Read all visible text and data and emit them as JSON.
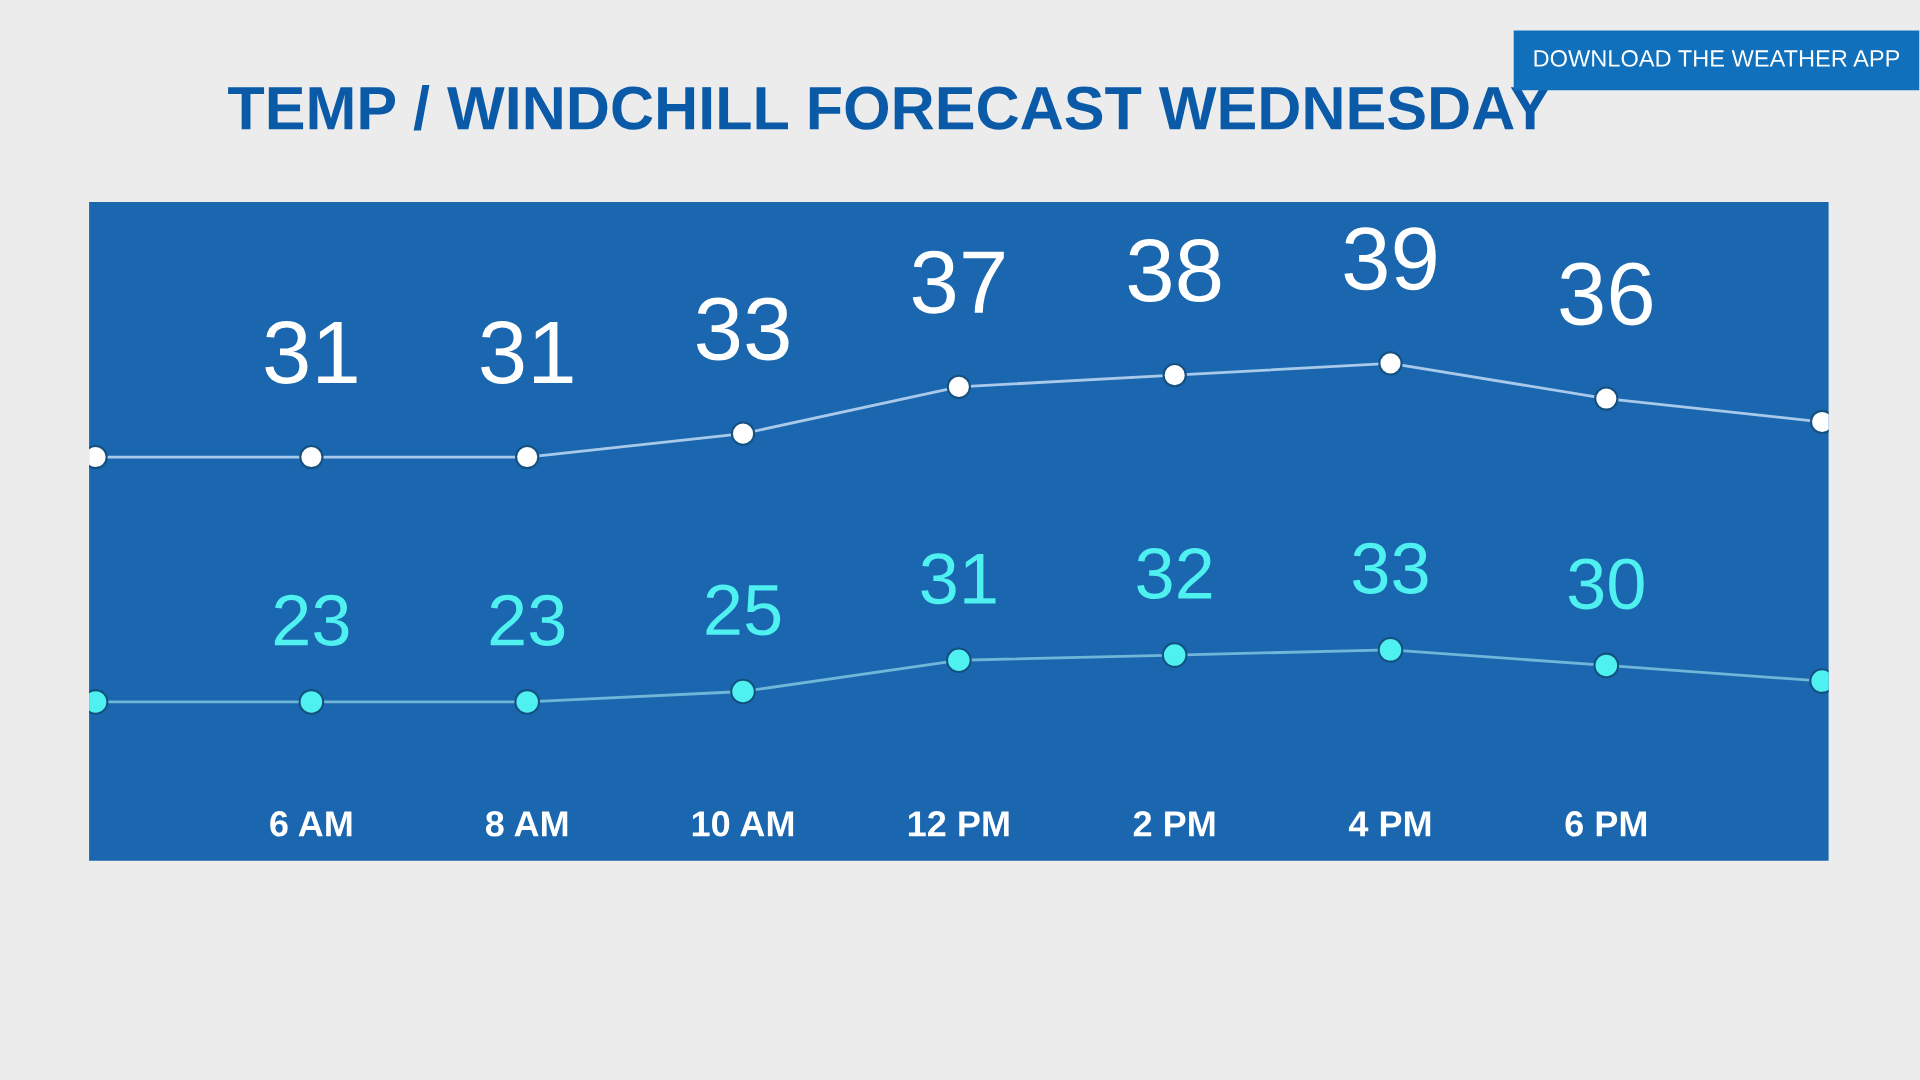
{
  "chart_data": {
    "type": "line",
    "title": "TEMP / WINDCHILL FORECAST WEDNESDAY",
    "categories": [
      null,
      "6 AM",
      "8 AM",
      "10 AM",
      "12 PM",
      "2 PM",
      "4 PM",
      "6 PM",
      null
    ],
    "series": [
      {
        "color": "#ffffff",
        "values": [
          31,
          31,
          31,
          33,
          37,
          38,
          39,
          36,
          34
        ],
        "value_labels": [
          null,
          "31",
          "31",
          "33",
          "37",
          "38",
          "39",
          "36",
          null
        ]
      },
      {
        "color": "#4ff0f0",
        "axis": "y2",
        "values": [
          23,
          23,
          23,
          25,
          31,
          32,
          33,
          30,
          27
        ],
        "value_labels": [
          null,
          "23",
          "23",
          "25",
          "31",
          "32",
          "33",
          "30",
          null
        ]
      }
    ],
    "ylim": [
      -3.5,
      52.8
    ],
    "y2lim": [
      -7.5,
      119
    ],
    "tick_labels": "x",
    "marker": "circle",
    "grid": false,
    "legend": false,
    "annotations": [
      "DOWNLOAD THE WEATHER APP"
    ]
  }
}
